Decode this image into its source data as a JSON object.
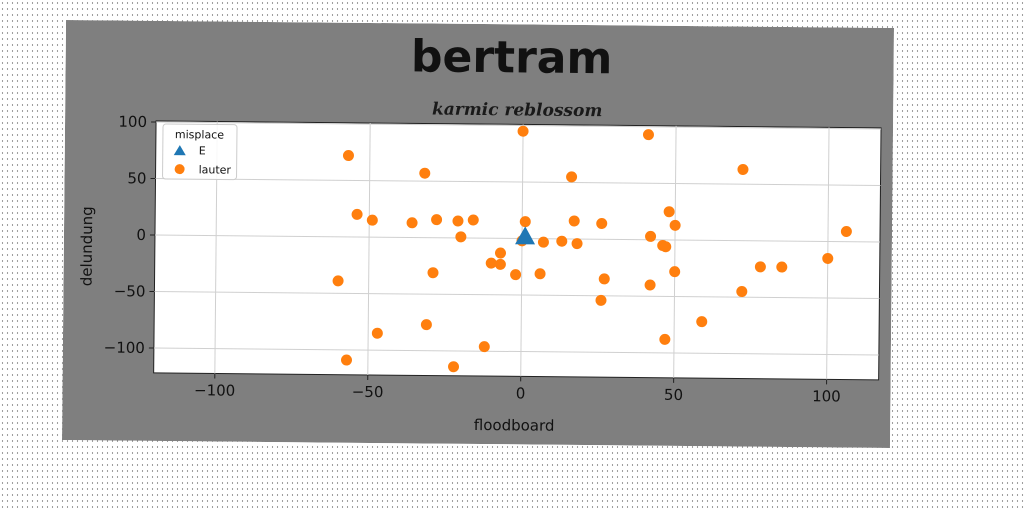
{
  "chart_data": {
    "type": "scatter",
    "title": "bertram",
    "subtitle": "karmic reblossom",
    "xlabel": "floodboard",
    "ylabel": "delundung",
    "xlim": [
      -120,
      117
    ],
    "ylim": [
      -122,
      101
    ],
    "xticks": [
      -100,
      -50,
      0,
      50,
      100
    ],
    "yticks": [
      -100,
      -50,
      0,
      50,
      100
    ],
    "xtick_labels": [
      "−100",
      "−50",
      "0",
      "50",
      "100"
    ],
    "ytick_labels": [
      "−100",
      "−50",
      "0",
      "50",
      "100"
    ],
    "grid": true,
    "legend": {
      "title": "misplace",
      "placement": "top-left",
      "entries": [
        {
          "label": "E",
          "color": "#1f77b4",
          "marker": "triangle"
        },
        {
          "label": "lauter",
          "color": "#ff7f0e",
          "marker": "circle"
        }
      ]
    },
    "series": [
      {
        "name": "E",
        "color": "#1f77b4",
        "marker": "triangle",
        "points": [
          [
            1,
            2
          ]
        ]
      },
      {
        "name": "lauter",
        "color": "#ff7f0e",
        "marker": "circle",
        "points": [
          [
            0,
            95
          ],
          [
            41,
            93
          ],
          [
            -57,
            72
          ],
          [
            72,
            63
          ],
          [
            -32,
            57
          ],
          [
            16,
            55
          ],
          [
            -54,
            20
          ],
          [
            -49,
            15
          ],
          [
            -36,
            13
          ],
          [
            -28,
            16
          ],
          [
            -21,
            15
          ],
          [
            -16,
            16
          ],
          [
            1,
            15
          ],
          [
            17,
            16
          ],
          [
            26,
            14
          ],
          [
            48,
            25
          ],
          [
            50,
            13
          ],
          [
            106,
            9
          ],
          [
            -20,
            1
          ],
          [
            0,
            -2
          ],
          [
            7,
            -3
          ],
          [
            13,
            -2
          ],
          [
            18,
            -4
          ],
          [
            42,
            3
          ],
          [
            46,
            -5
          ],
          [
            47,
            -6
          ],
          [
            100,
            -15
          ],
          [
            -7,
            -13
          ],
          [
            -10,
            -22
          ],
          [
            -7,
            -23
          ],
          [
            -2,
            -32
          ],
          [
            6,
            -31
          ],
          [
            -29,
            -31
          ],
          [
            -60,
            -39
          ],
          [
            27,
            -35
          ],
          [
            42,
            -40
          ],
          [
            50,
            -28
          ],
          [
            72,
            -45
          ],
          [
            78,
            -23
          ],
          [
            85,
            -23
          ],
          [
            26,
            -54
          ],
          [
            59,
            -72
          ],
          [
            -31,
            -77
          ],
          [
            -47,
            -85
          ],
          [
            47,
            -88
          ],
          [
            -12,
            -96
          ],
          [
            -57,
            -109
          ],
          [
            -22,
            -114
          ]
        ]
      }
    ]
  }
}
